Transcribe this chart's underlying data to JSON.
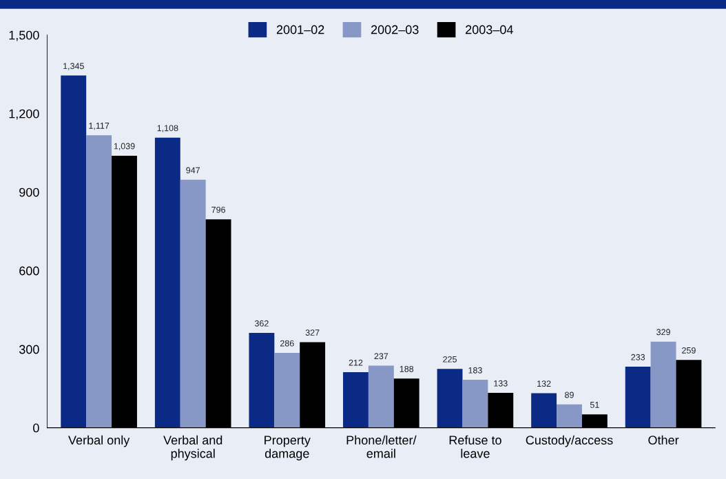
{
  "chart_data": {
    "type": "bar",
    "categories": [
      "Verbal only",
      "Verbal and\nphysical",
      "Property\ndamage",
      "Phone/letter/\nemail",
      "Refuse to\nleave",
      "Custody/access",
      "Other"
    ],
    "series": [
      {
        "name": "2001–02",
        "color": "#0b2a86",
        "values": [
          1345,
          1108,
          362,
          212,
          225,
          132,
          233
        ]
      },
      {
        "name": "2002–03",
        "color": "#8797c6",
        "values": [
          1117,
          947,
          286,
          237,
          183,
          89,
          329
        ]
      },
      {
        "name": "2003–04",
        "color": "#000000",
        "values": [
          1039,
          796,
          327,
          188,
          133,
          51,
          259
        ]
      }
    ],
    "ylim": [
      0,
      1500
    ],
    "yticks": [
      0,
      300,
      600,
      900,
      {
        "value": 1200,
        "label": "1,200"
      },
      {
        "value": 1500,
        "label": "1,500"
      }
    ],
    "value_labels": [
      [
        "1,345",
        "1,108",
        "362",
        "212",
        "225",
        "132",
        "233"
      ],
      [
        "1,117",
        "947",
        "286",
        "237",
        "183",
        "89",
        "329"
      ],
      [
        "1,039",
        "796",
        "327",
        "188",
        "133",
        "51",
        "259"
      ]
    ],
    "grid": false,
    "legend": "top"
  }
}
